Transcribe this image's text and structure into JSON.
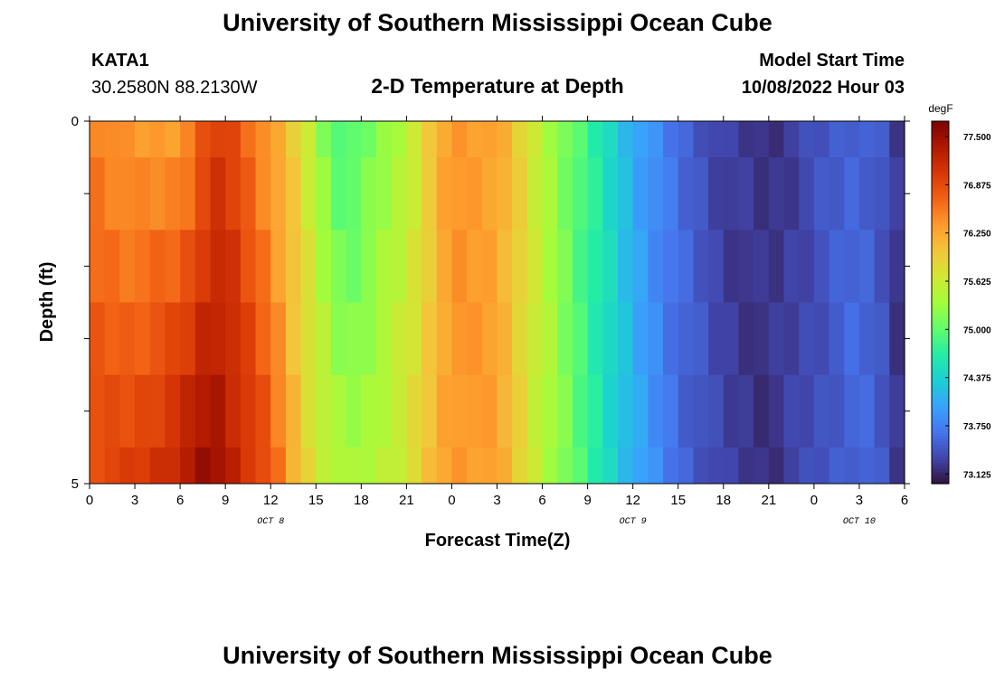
{
  "header": {
    "title": "University of Southern Mississippi Ocean Cube",
    "station_id": "KATA1",
    "coordinates": "30.2580N  88.2130W",
    "plot_title": "2-D Temperature at Depth",
    "model_start_label": "Model Start Time",
    "model_start_value": "10/08/2022 Hour 03"
  },
  "footer": {
    "title": "University of Southern Mississippi Ocean Cube"
  },
  "chart_data": {
    "type": "heatmap",
    "title": "2-D Temperature at Depth",
    "xlabel": "Forecast Time(Z)",
    "ylabel": "Depth (ft)",
    "x_tick_labels": [
      "0",
      "3",
      "6",
      "9",
      "12",
      "15",
      "18",
      "21",
      "0",
      "3",
      "6",
      "9",
      "12",
      "15",
      "18",
      "21",
      "0",
      "3",
      "6"
    ],
    "x_range_hours": [
      0,
      54
    ],
    "day_labels": [
      {
        "label": "OCT 8",
        "hour": 12
      },
      {
        "label": "OCT 9",
        "hour": 36
      },
      {
        "label": "OCT 10",
        "hour": 51
      }
    ],
    "y_tick_labels": [
      "0",
      "5"
    ],
    "y_range": [
      0,
      5
    ],
    "y_inverted": true,
    "colorbar": {
      "unit": "degF",
      "min": 73.0,
      "max": 77.7,
      "tick_labels": [
        "77.500",
        "76.875",
        "76.250",
        "75.625",
        "75.000",
        "74.375",
        "73.750",
        "73.125"
      ],
      "tick_values": [
        77.5,
        76.875,
        76.25,
        75.625,
        75.0,
        74.375,
        73.75,
        73.125
      ],
      "colormap_stops": [
        "#30123b",
        "#4145ab",
        "#4675ed",
        "#39a2fc",
        "#1bcfd4",
        "#24eca6",
        "#61fc6c",
        "#a4fc3b",
        "#d1e834",
        "#f3c63a",
        "#fe9b2d",
        "#f36315",
        "#d93806",
        "#b11901",
        "#7a0402"
      ]
    },
    "depth_levels_ft": [
      0,
      0.5,
      1.5,
      2.5,
      3.5,
      4.5,
      5.0
    ],
    "time_hours": [
      0,
      3,
      6,
      8,
      9,
      12,
      14,
      16,
      17,
      18,
      21,
      24,
      27,
      30,
      33,
      36,
      39,
      42,
      45,
      48,
      51,
      53,
      54
    ],
    "surface_temp_degF": [
      76.55,
      76.3,
      76.3,
      76.9,
      77.0,
      76.3,
      75.8,
      75.0,
      74.85,
      75.0,
      75.5,
      76.4,
      76.3,
      75.5,
      74.8,
      74.1,
      73.6,
      73.3,
      73.2,
      73.4,
      73.6,
      73.4,
      73.1
    ],
    "bottom_temp_degF": [
      76.9,
      77.0,
      77.3,
      77.6,
      77.4,
      76.8,
      76.0,
      75.5,
      75.4,
      75.4,
      75.7,
      76.4,
      76.3,
      75.5,
      74.8,
      74.1,
      73.6,
      73.3,
      73.2,
      73.4,
      73.6,
      73.4,
      73.1
    ],
    "grid": false
  }
}
